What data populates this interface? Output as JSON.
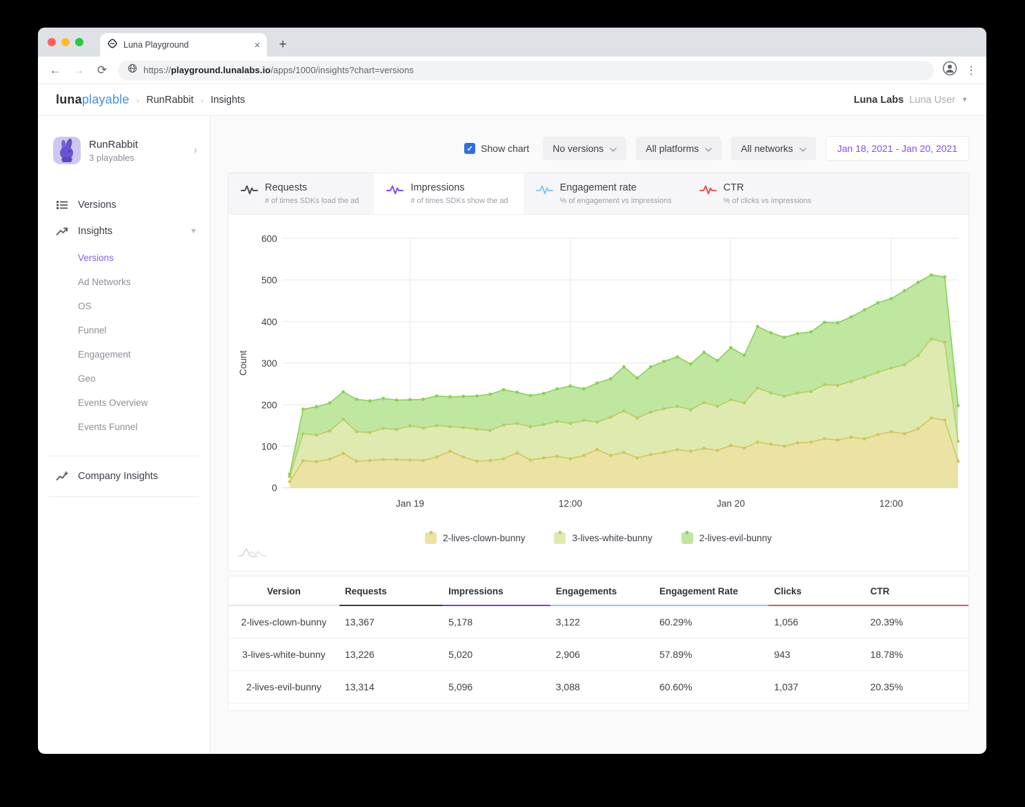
{
  "browser": {
    "tab_title": "Luna Playground",
    "url_scheme": "https://",
    "url_domain": "playground.lunalabs.io",
    "url_path": "/apps/1000/insights?chart=versions",
    "new_tab_label": "+",
    "close_tab_label": "×"
  },
  "header": {
    "logo_primary": "luna",
    "logo_secondary": "playable",
    "breadcrumbs": [
      "RunRabbit",
      "Insights"
    ],
    "account_company": "Luna Labs",
    "account_user": "Luna User"
  },
  "sidebar": {
    "app_name": "RunRabbit",
    "app_subtitle": "3 playables",
    "versions_label": "Versions",
    "insights_label": "Insights",
    "insights_items": [
      "Versions",
      "Ad Networks",
      "OS",
      "Funnel",
      "Engagement",
      "Geo",
      "Events Overview",
      "Events Funnel"
    ],
    "active_item": "Versions",
    "company_insights_label": "Company Insights"
  },
  "controls": {
    "show_chart_label": "Show chart",
    "filters": [
      "No versions",
      "All platforms",
      "All networks"
    ],
    "date_range": "Jan 18, 2021 - Jan 20, 2021"
  },
  "tabs": [
    {
      "label": "Requests",
      "sublabel": "# of times SDKs load the ad",
      "color": "#4a4d55",
      "active": false
    },
    {
      "label": "Impressions",
      "sublabel": "# of times SDKs show the ad",
      "color": "#7c4dff",
      "active": true
    },
    {
      "label": "Engagement rate",
      "sublabel": "% of engagement vs impressions",
      "color": "#85c6f2",
      "active": false
    },
    {
      "label": "CTR",
      "sublabel": "% of clicks vs impressions",
      "color": "#e4514e",
      "active": false
    }
  ],
  "chart_data": {
    "type": "area",
    "stacked": true,
    "ylabel": "Count",
    "ylim": [
      0,
      600
    ],
    "yticks": [
      0,
      100,
      200,
      300,
      400,
      500,
      600
    ],
    "x_tick_labels": [
      "Jan 19",
      "12:00",
      "Jan 20",
      "12:00"
    ],
    "x_tick_indices": [
      9,
      21,
      33,
      45
    ],
    "grid": true,
    "legend_position": "bottom",
    "series": [
      {
        "name": "2-lives-clown-bunny",
        "fill": "#eae3a4",
        "line": "#d3c75c",
        "values": [
          15,
          65,
          63,
          69,
          83,
          64,
          66,
          68,
          68,
          67,
          66,
          74,
          88,
          74,
          64,
          66,
          70,
          84,
          67,
          72,
          76,
          70,
          78,
          92,
          78,
          85,
          72,
          80,
          85,
          92,
          88,
          95,
          90,
          102,
          96,
          110,
          105,
          100,
          108,
          110,
          118,
          115,
          122,
          118,
          128,
          135,
          130,
          142,
          168,
          163,
          64
        ]
      },
      {
        "name": "3-lives-white-bunny",
        "fill": "#dfeab0",
        "line": "#b7ce62",
        "values": [
          12,
          65,
          64,
          68,
          82,
          71,
          67,
          75,
          72,
          82,
          78,
          76,
          59,
          71,
          77,
          72,
          81,
          71,
          80,
          80,
          84,
          85,
          84,
          66,
          92,
          100,
          96,
          102,
          105,
          104,
          100,
          110,
          106,
          110,
          108,
          130,
          123,
          120,
          120,
          122,
          130,
          131,
          134,
          148,
          150,
          153,
          166,
          176,
          190,
          187,
          48
        ]
      },
      {
        "name": "2-lives-evil-bunny",
        "fill": "#bfe79f",
        "line": "#89d156",
        "values": [
          6,
          59,
          68,
          67,
          66,
          78,
          76,
          72,
          71,
          63,
          69,
          71,
          72,
          75,
          80,
          87,
          85,
          75,
          75,
          75,
          78,
          90,
          76,
          94,
          92,
          106,
          96,
          109,
          114,
          119,
          110,
          121,
          110,
          125,
          115,
          148,
          145,
          142,
          143,
          143,
          150,
          151,
          155,
          162,
          167,
          167,
          178,
          176,
          154,
          157,
          86
        ]
      }
    ]
  },
  "table": {
    "columns": [
      {
        "label": "Version",
        "accent": "#e4e4e8"
      },
      {
        "label": "Requests",
        "accent": "#3a3d42"
      },
      {
        "label": "Impressions",
        "accent": "#7b3bed"
      },
      {
        "label": "Engagements",
        "accent": "#8ec9f2"
      },
      {
        "label": "Engagement Rate",
        "accent": "#8ec9f2"
      },
      {
        "label": "Clicks",
        "accent": "#e25555"
      },
      {
        "label": "CTR",
        "accent": "#e25555"
      }
    ],
    "rows": [
      [
        "2-lives-clown-bunny",
        "13,367",
        "5,178",
        "3,122",
        "60.29%",
        "1,056",
        "20.39%"
      ],
      [
        "3-lives-white-bunny",
        "13,226",
        "5,020",
        "2,906",
        "57.89%",
        "943",
        "18.78%"
      ],
      [
        "2-lives-evil-bunny",
        "13,314",
        "5,096",
        "3,088",
        "60.60%",
        "1,037",
        "20.35%"
      ]
    ]
  }
}
